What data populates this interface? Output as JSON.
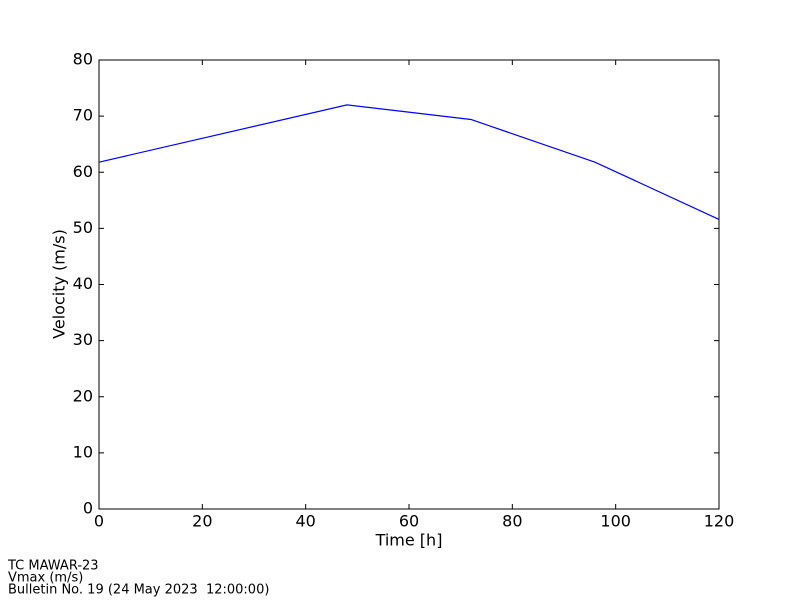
{
  "chart_data": {
    "type": "line",
    "xlabel": "Time [h]",
    "ylabel": "Velocity (m/s)",
    "x": [
      0,
      48,
      72,
      96,
      120
    ],
    "series": [
      {
        "color": "#0000ff",
        "values": [
          61.8,
          72.0,
          69.4,
          61.8,
          51.6
        ]
      }
    ],
    "xlim": [
      0,
      120
    ],
    "xticks": [
      0,
      20,
      40,
      60,
      80,
      100,
      120
    ],
    "ylim": [
      0,
      80
    ],
    "yticks": [
      0,
      10,
      20,
      30,
      40,
      50,
      60,
      70,
      80
    ],
    "grid": false
  },
  "footer": [
    "TC MAWAR-23",
    "Vmax (m/s)",
    "Bulletin No. 19 (24 May 2023  12:00:00)"
  ]
}
